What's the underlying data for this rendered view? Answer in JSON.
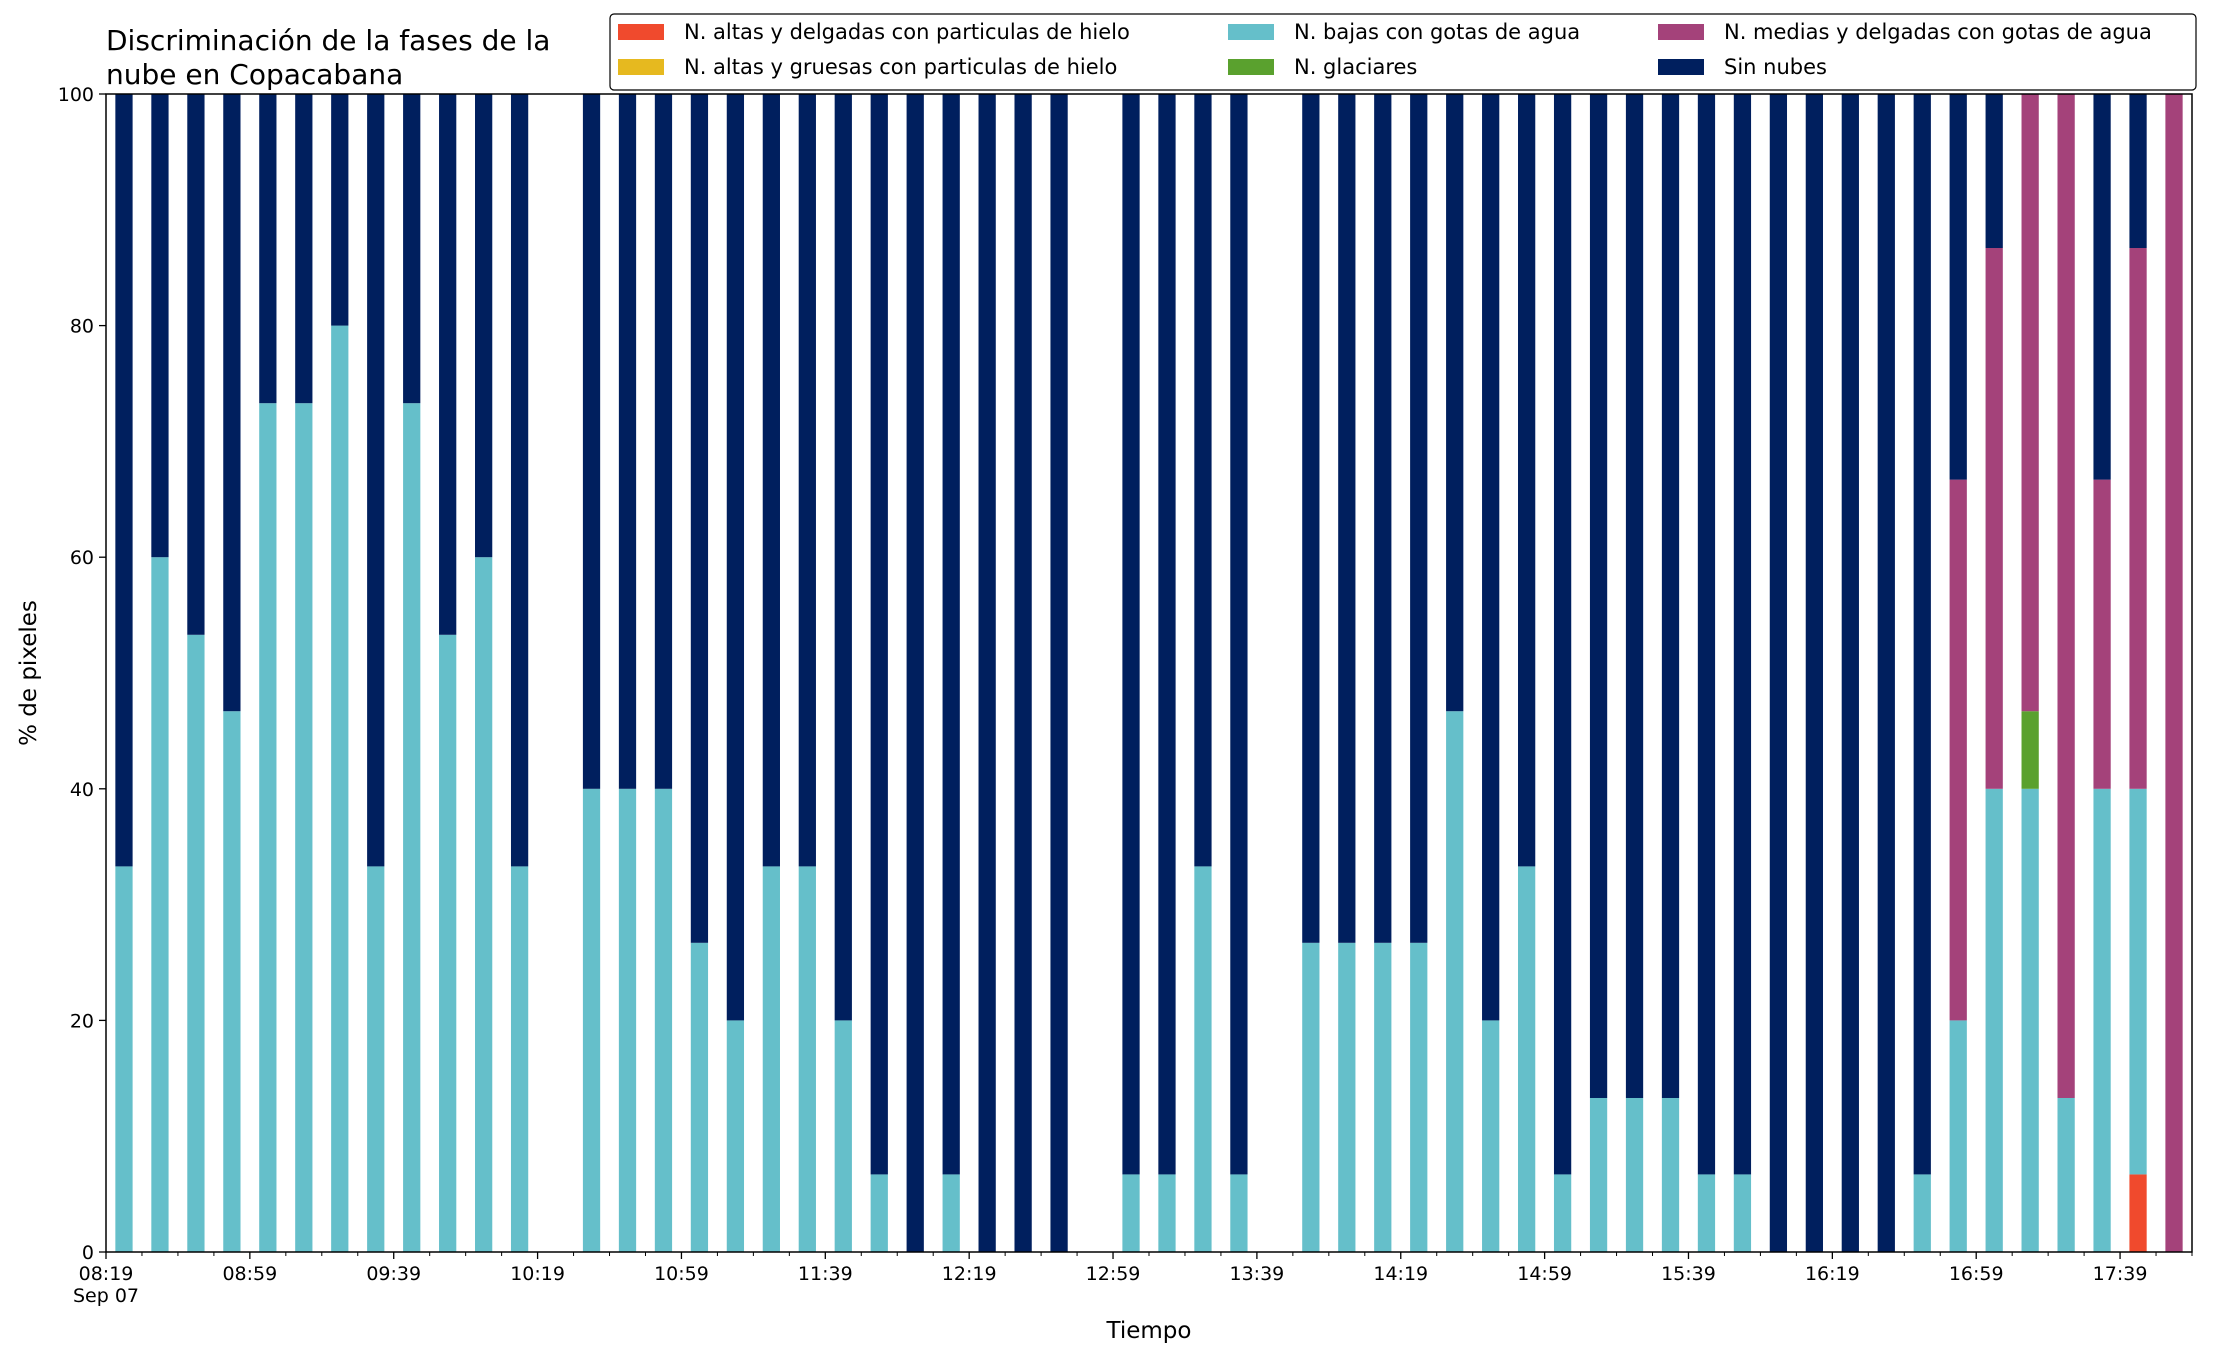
{
  "chart_data": {
    "type": "bar",
    "stacked": true,
    "title": "Discriminación de la fases de la\nnube en Copacabana",
    "xlabel": "Tiempo",
    "ylabel": "% de pixeles",
    "ylim": [
      0,
      100
    ],
    "yticks": [
      0,
      20,
      40,
      60,
      80,
      100
    ],
    "x_start": "08:19",
    "x_end": "17:59",
    "interval_minutes": 10,
    "xtick_labels": [
      "08:19",
      "08:59",
      "09:39",
      "10:19",
      "10:59",
      "11:39",
      "12:19",
      "12:59",
      "13:39",
      "14:19",
      "14:59",
      "15:39",
      "16:19",
      "16:59",
      "17:39"
    ],
    "date_label": "Sep 07",
    "grid": false,
    "legend_position": "top-right",
    "categories": [
      "08:19",
      "08:29",
      "08:39",
      "08:49",
      "08:59",
      "09:09",
      "09:19",
      "09:29",
      "09:39",
      "09:49",
      "09:59",
      "10:09",
      "10:19",
      "10:29",
      "10:39",
      "10:49",
      "10:59",
      "11:09",
      "11:19",
      "11:29",
      "11:39",
      "11:49",
      "11:59",
      "12:09",
      "12:19",
      "12:29",
      "12:39",
      "12:49",
      "12:59",
      "13:09",
      "13:19",
      "13:29",
      "13:39",
      "13:49",
      "13:59",
      "14:09",
      "14:19",
      "14:29",
      "14:39",
      "14:49",
      "14:59",
      "15:09",
      "15:19",
      "15:29",
      "15:39",
      "15:49",
      "15:59",
      "16:09",
      "16:19",
      "16:29",
      "16:39",
      "16:49",
      "16:59",
      "17:09",
      "17:19",
      "17:29",
      "17:39",
      "17:49"
    ],
    "series": [
      {
        "name": "N. altas y delgadas con particulas de hielo",
        "color": "#f04a2d",
        "values": [
          0,
          0,
          0,
          0,
          0,
          0,
          0,
          0,
          0,
          0,
          0,
          0,
          null,
          0,
          0,
          0,
          0,
          0,
          0,
          0,
          0,
          0,
          0,
          0,
          0,
          0,
          0,
          null,
          0,
          0,
          0,
          0,
          null,
          0,
          0,
          0,
          0,
          0,
          0,
          0,
          0,
          0,
          0,
          0,
          0,
          0,
          0,
          0,
          0,
          0,
          0,
          0,
          0,
          0,
          0,
          0,
          6.7,
          0
        ]
      },
      {
        "name": "N. altas y gruesas con particulas de hielo",
        "color": "#e6b91f",
        "values": [
          0,
          0,
          0,
          0,
          0,
          0,
          0,
          0,
          0,
          0,
          0,
          0,
          null,
          0,
          0,
          0,
          0,
          0,
          0,
          0,
          0,
          0,
          0,
          0,
          0,
          0,
          0,
          null,
          0,
          0,
          0,
          0,
          null,
          0,
          0,
          0,
          0,
          0,
          0,
          0,
          0,
          0,
          0,
          0,
          0,
          0,
          0,
          0,
          0,
          0,
          0,
          0,
          0,
          0,
          0,
          0,
          0,
          0
        ]
      },
      {
        "name": "N. bajas con gotas de agua",
        "color": "#65bfca",
        "values": [
          33.3,
          60,
          53.3,
          46.7,
          73.3,
          73.3,
          80,
          33.3,
          73.3,
          53.3,
          60,
          33.3,
          null,
          40,
          40,
          40,
          26.7,
          20,
          33.3,
          33.3,
          20,
          6.7,
          0,
          6.7,
          0,
          0,
          0,
          null,
          6.7,
          6.7,
          33.3,
          6.7,
          null,
          26.7,
          26.7,
          26.7,
          26.7,
          46.7,
          20,
          33.3,
          6.7,
          13.3,
          13.3,
          13.3,
          6.7,
          6.7,
          0,
          0,
          0,
          0,
          6.7,
          20,
          40,
          40,
          13.3,
          40,
          33.3,
          0
        ]
      },
      {
        "name": "N. glaciares",
        "color": "#5aa12e",
        "values": [
          0,
          0,
          0,
          0,
          0,
          0,
          0,
          0,
          0,
          0,
          0,
          0,
          null,
          0,
          0,
          0,
          0,
          0,
          0,
          0,
          0,
          0,
          0,
          0,
          0,
          0,
          0,
          null,
          0,
          0,
          0,
          0,
          null,
          0,
          0,
          0,
          0,
          0,
          0,
          0,
          0,
          0,
          0,
          0,
          0,
          0,
          0,
          0,
          0,
          0,
          0,
          0,
          0,
          6.7,
          0,
          0,
          0,
          0
        ]
      },
      {
        "name": "N. medias y delgadas con gotas de agua",
        "color": "#a4427a",
        "values": [
          0,
          0,
          0,
          0,
          0,
          0,
          0,
          0,
          0,
          0,
          0,
          0,
          null,
          0,
          0,
          0,
          0,
          0,
          0,
          0,
          0,
          0,
          0,
          0,
          0,
          0,
          0,
          null,
          0,
          0,
          0,
          0,
          null,
          0,
          0,
          0,
          0,
          0,
          0,
          0,
          0,
          0,
          0,
          0,
          0,
          0,
          0,
          0,
          0,
          0,
          0,
          46.7,
          46.7,
          53.3,
          86.7,
          26.7,
          46.7,
          100
        ]
      },
      {
        "name": "Sin nubes",
        "color": "#001f5e",
        "values": [
          66.7,
          40,
          46.7,
          53.3,
          26.7,
          26.7,
          20,
          66.7,
          26.7,
          46.7,
          40,
          66.7,
          null,
          60,
          60,
          60,
          73.3,
          80,
          66.7,
          66.7,
          80,
          93.3,
          100,
          93.3,
          100,
          100,
          100,
          null,
          93.3,
          93.3,
          66.7,
          93.3,
          null,
          73.3,
          73.3,
          73.3,
          73.3,
          53.3,
          80,
          66.7,
          93.3,
          86.7,
          86.7,
          86.7,
          93.3,
          93.3,
          100,
          100,
          100,
          100,
          93.3,
          33.3,
          13.3,
          0,
          0,
          33.3,
          13.3,
          0
        ]
      }
    ]
  }
}
